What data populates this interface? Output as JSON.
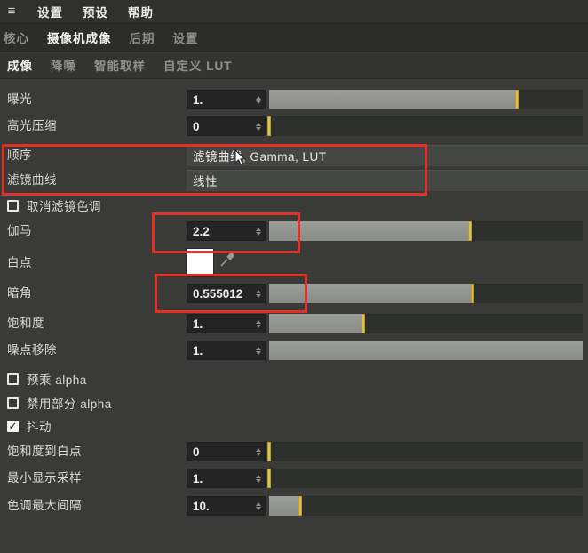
{
  "menu_bar": {
    "items": [
      {
        "label": "设置"
      },
      {
        "label": "预设"
      },
      {
        "label": "帮助"
      }
    ]
  },
  "main_tabs": {
    "items": [
      {
        "label": "核心",
        "active": false
      },
      {
        "label": "摄像机成像",
        "active": true
      },
      {
        "label": "后期",
        "active": false
      },
      {
        "label": "设置",
        "active": false
      }
    ]
  },
  "sub_tabs": {
    "items": [
      {
        "label": "成像",
        "active": true
      },
      {
        "label": "降噪",
        "active": false
      },
      {
        "label": "智能取样",
        "active": false
      },
      {
        "label": "自定义 LUT",
        "active": false
      }
    ]
  },
  "params": {
    "exposure": {
      "label": "曝光",
      "value": "1.",
      "fill_pct": 79
    },
    "highlight_compress": {
      "label": "高光压缩",
      "value": "0",
      "fill_pct": 0
    },
    "order": {
      "label": "顺序",
      "value": "滤镜曲线, Gamma, LUT"
    },
    "filter_curve": {
      "label": "滤镜曲线",
      "value": "线性"
    },
    "cancel_filter_tint": {
      "label": "取消滤镜色调",
      "checked": false
    },
    "gamma": {
      "label": "伽马",
      "value": "2.2",
      "fill_pct": 64
    },
    "white_point": {
      "label": "白点",
      "color": "#ffffff"
    },
    "vignette": {
      "label": "暗角",
      "value": "0.555012",
      "fill_pct": 65
    },
    "saturation": {
      "label": "饱和度",
      "value": "1.",
      "fill_pct": 30
    },
    "noise_removal": {
      "label": "噪点移除",
      "value": "1.",
      "fill_pct": 100
    },
    "premultiplied_alpha": {
      "label": "预乘 alpha",
      "checked": false
    },
    "disable_partial_alpha": {
      "label": "禁用部分 alpha",
      "checked": false
    },
    "dithering": {
      "label": "抖动",
      "checked": true
    },
    "saturation_to_white": {
      "label": "饱和度到白点",
      "value": "0",
      "fill_pct": 0
    },
    "min_display_samples": {
      "label": "最小显示采样",
      "value": "1.",
      "fill_pct": 0
    },
    "tone_max_interval": {
      "label": "色调最大间隔",
      "value": "10.",
      "fill_pct": 10
    }
  },
  "icons": {
    "hamburger": "≡",
    "check": "✓"
  },
  "colors": {
    "panel_bg": "#3a3b39",
    "slider_fill": "#90928e",
    "slider_marker": "#e0c24a",
    "annotation_red": "#e23126",
    "white_point_swatch": "#ffffff"
  }
}
